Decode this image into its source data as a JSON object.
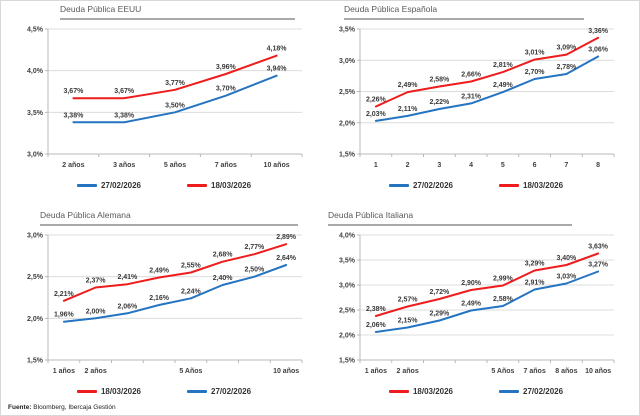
{
  "footer": {
    "label": "Fuente:",
    "text": " Bloomberg, Ibercaja Gestión"
  },
  "colors": {
    "blue": "#2474c2",
    "red": "#ee1c1c",
    "grid": "#dcdcdc",
    "axis": "#b8b8b8",
    "tick_label": "#3f3f3f",
    "data_label": "#3a3a3a",
    "title": "#595959",
    "title_rule": "#a9a9a9"
  },
  "chart_data": [
    {
      "id": "eeuu",
      "type": "line",
      "title": "Deuda Pública EEUU",
      "categories": [
        "2 años",
        "3 años",
        "5 años",
        "7 años",
        "10 años"
      ],
      "ylim": [
        3.0,
        4.5
      ],
      "ytick_step": 0.5,
      "grid": true,
      "legend_position": "bottom",
      "series": [
        {
          "name": "27/02/2026",
          "color": "blue",
          "values": [
            3.38,
            3.38,
            3.5,
            3.7,
            3.94
          ]
        },
        {
          "name": "18/03/2026",
          "color": "red",
          "values": [
            3.67,
            3.67,
            3.77,
            3.96,
            4.18
          ]
        }
      ]
    },
    {
      "id": "espanola",
      "type": "line",
      "title": "Deuda Pública Española",
      "categories": [
        "1",
        "2",
        "3",
        "4",
        "5",
        "6",
        "7",
        "8"
      ],
      "ylim": [
        1.5,
        3.5
      ],
      "ytick_step": 0.5,
      "grid": true,
      "legend_position": "bottom",
      "series": [
        {
          "name": "27/02/2026",
          "color": "blue",
          "values": [
            2.03,
            2.11,
            2.22,
            2.31,
            2.49,
            2.7,
            2.78,
            3.06
          ]
        },
        {
          "name": "18/03/2026",
          "color": "red",
          "values": [
            2.26,
            2.49,
            2.58,
            2.66,
            2.81,
            3.01,
            3.09,
            3.36
          ]
        }
      ]
    },
    {
      "id": "alemana",
      "type": "line",
      "title": "Deuda Pública Alemana",
      "categories": [
        "1 años",
        "2 años",
        "",
        "",
        "5 Años",
        "",
        "",
        "10 años"
      ],
      "ylim": [
        1.5,
        3.0
      ],
      "ytick_step": 0.5,
      "grid": true,
      "legend_position": "bottom",
      "series": [
        {
          "name": "18/03/2026",
          "color": "red",
          "values": [
            2.21,
            2.37,
            2.41,
            2.49,
            2.55,
            2.68,
            2.77,
            2.89
          ]
        },
        {
          "name": "27/02/2026",
          "color": "blue",
          "values": [
            1.96,
            2.0,
            2.06,
            2.16,
            2.24,
            2.4,
            2.5,
            2.64
          ]
        }
      ]
    },
    {
      "id": "italiana",
      "type": "line",
      "title": "Deuda Pública Italiana",
      "categories": [
        "1 años",
        "2 años",
        "",
        "",
        "5 Años",
        "7 años",
        "8 años",
        "10 años"
      ],
      "ylim": [
        1.5,
        4.0
      ],
      "ytick_step": 0.5,
      "grid": true,
      "legend_position": "bottom",
      "series": [
        {
          "name": "18/03/2026",
          "color": "red",
          "values": [
            2.38,
            2.57,
            2.72,
            2.9,
            2.99,
            3.29,
            3.4,
            3.63
          ]
        },
        {
          "name": "27/02/2026",
          "color": "blue",
          "values": [
            2.06,
            2.15,
            2.29,
            2.49,
            2.58,
            2.91,
            3.03,
            3.27
          ]
        }
      ]
    }
  ]
}
